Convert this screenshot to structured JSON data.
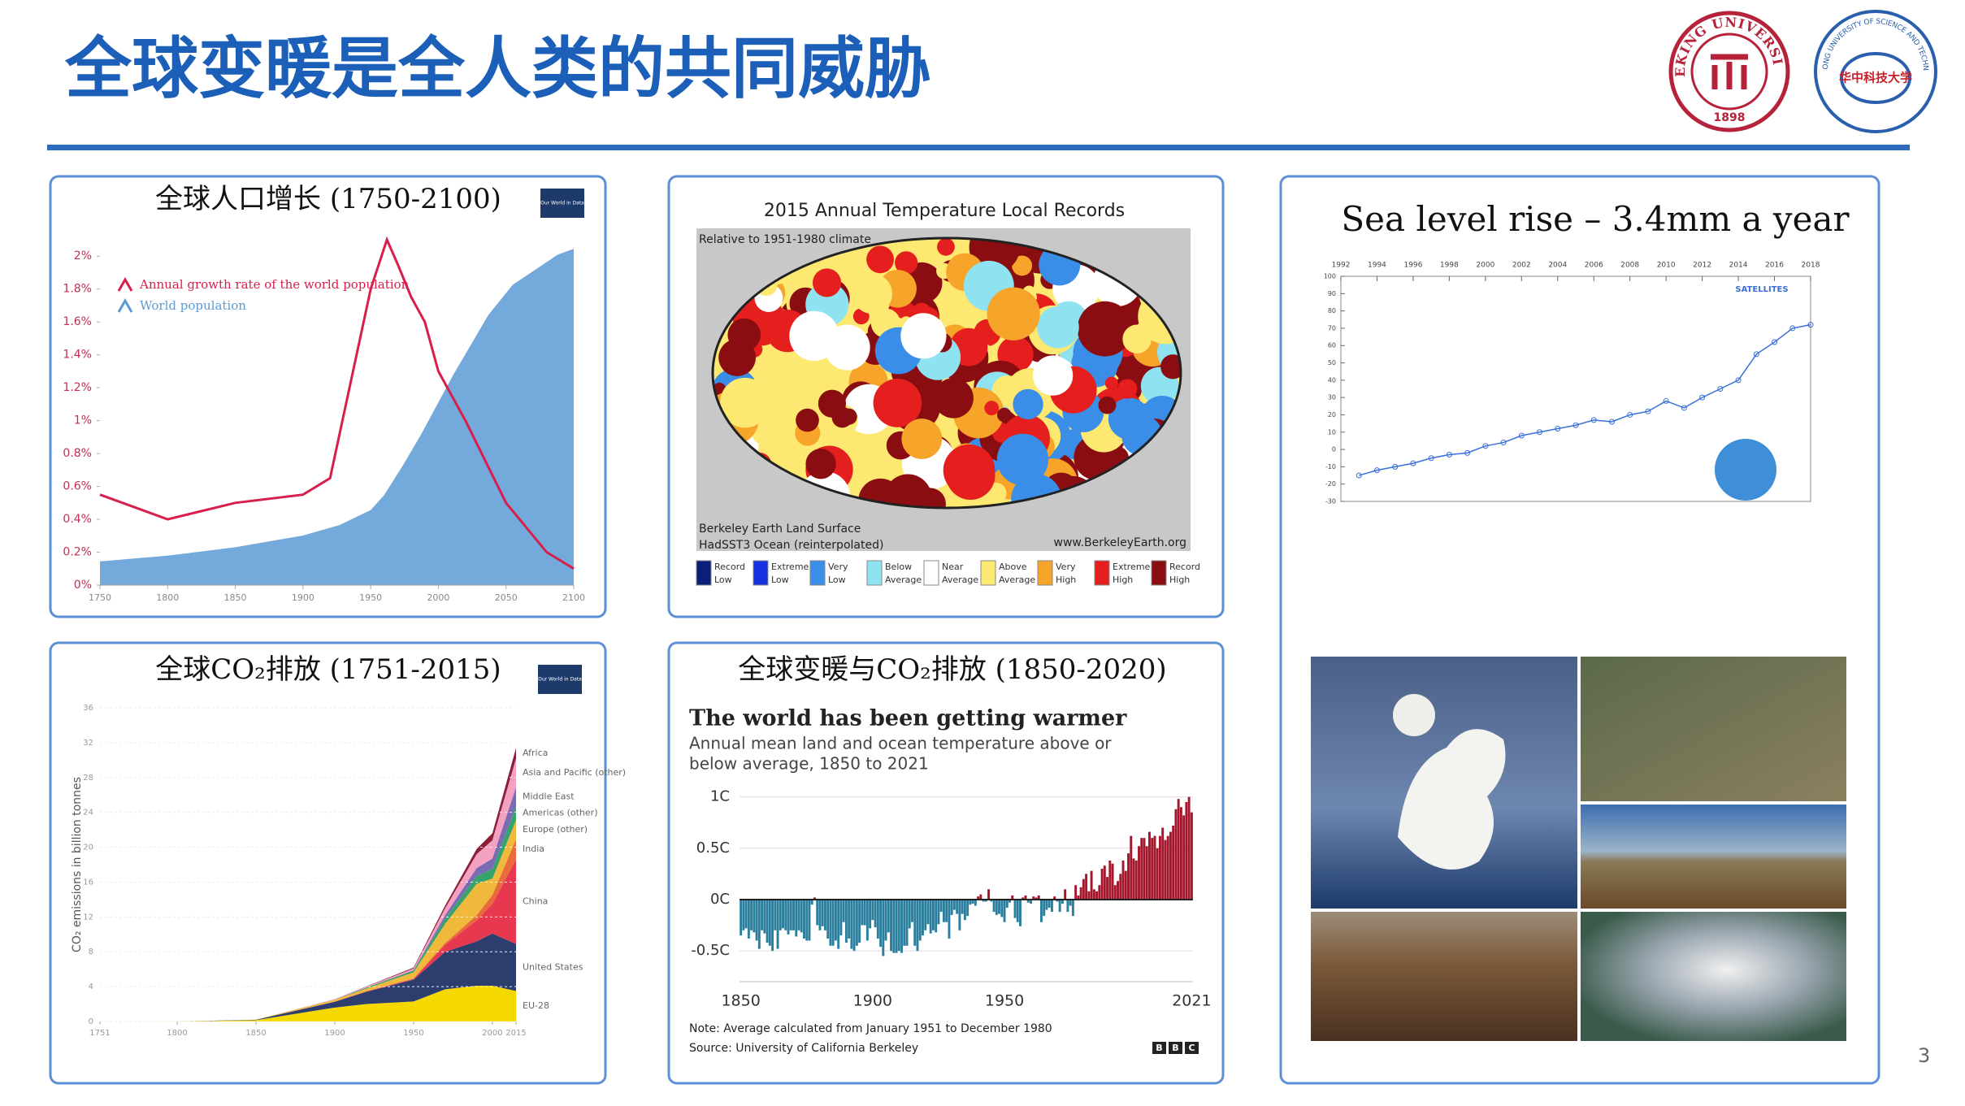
{
  "slide": {
    "title": "全球变暖是全人类的共同威胁",
    "page_number": "3",
    "logos": [
      {
        "text": "PEKING UNIVERSITY",
        "year": "1898"
      },
      {
        "text": "HUAZHONG UNIVERSITY OF SCIENCE AND TECHNOLOGY",
        "name": "华中科技大学"
      }
    ],
    "map_panel": {
      "title": "2015 Annual Temperature Local Records",
      "subtitle": "Relative to 1951-1980 climate",
      "source_lines": [
        "Berkeley Earth Land Surface",
        "HadSST3 Ocean (reinterpolated)"
      ],
      "website": "www.BerkeleyEarth.org",
      "legend": [
        {
          "label": [
            "Record",
            "Low"
          ],
          "color": "#0c1f78"
        },
        {
          "label": [
            "Extreme",
            "Low"
          ],
          "color": "#1432e0"
        },
        {
          "label": [
            "Very",
            "Low"
          ],
          "color": "#3a8ee8"
        },
        {
          "label": [
            "Below",
            "Average"
          ],
          "color": "#8fe3f0"
        },
        {
          "label": [
            "Near",
            "Average"
          ],
          "color": "#ffffff"
        },
        {
          "label": [
            "Above",
            "Average"
          ],
          "color": "#fde872"
        },
        {
          "label": [
            "Very",
            "High"
          ],
          "color": "#f6a42a"
        },
        {
          "label": [
            "Extreme",
            "High"
          ],
          "color": "#e51e1e"
        },
        {
          "label": [
            "Record",
            "High"
          ],
          "color": "#8a0d12"
        }
      ]
    }
  },
  "chart_data": [
    {
      "type": "line",
      "title": "全球人口增长 (1750-2100)",
      "badge": "Our World in Data",
      "xlim": [
        1750,
        2100
      ],
      "xticks": [
        1750,
        1800,
        1850,
        1900,
        1950,
        2000,
        2050,
        2100
      ],
      "ylim": [
        0,
        2.1
      ],
      "yticks": [
        {
          "value": 0,
          "label": "0%"
        },
        {
          "value": 0.2,
          "label": "0.2%"
        },
        {
          "value": 0.4,
          "label": "0.4%"
        },
        {
          "value": 0.6,
          "label": "0.6%"
        },
        {
          "value": 0.8,
          "label": "0.8%"
        },
        {
          "value": 1,
          "label": "1%"
        },
        {
          "value": 1.2,
          "label": "1.2%"
        },
        {
          "value": 1.4,
          "label": "1.4%"
        },
        {
          "value": 1.6,
          "label": "1.6%"
        },
        {
          "value": 1.8,
          "label": "1.8%"
        },
        {
          "value": 2,
          "label": "2%"
        }
      ],
      "y2lim": [
        0,
        11.5
      ],
      "series": [
        {
          "name": "Annual growth rate of the world population",
          "color": "#d81e4a",
          "x": [
            1750,
            1800,
            1850,
            1900,
            1920,
            1950,
            1962,
            1970,
            1980,
            1990,
            2000,
            2020,
            2050,
            2080,
            2100
          ],
          "values": [
            0.55,
            0.4,
            0.5,
            0.55,
            0.65,
            1.8,
            2.1,
            1.95,
            1.75,
            1.6,
            1.3,
            1.0,
            0.5,
            0.2,
            0.1
          ]
        },
        {
          "name": "World population",
          "color": "#5b9bd5",
          "axis": "y2",
          "x": [
            1750,
            1800,
            1850,
            1900,
            1927,
            1950,
            1960,
            1974,
            1987,
            1999,
            2011,
            2024,
            2037,
            2055,
            2088,
            2100
          ],
          "values": [
            0.79,
            0.98,
            1.26,
            1.65,
            2,
            2.5,
            3,
            4,
            5,
            6,
            7,
            8,
            9,
            10,
            11,
            11.2
          ]
        }
      ]
    },
    {
      "type": "stacked_area",
      "title": "全球CO₂排放 (1751-2015)",
      "badge": "Our World in Data",
      "y_label": "CO₂ emissions in billion tonnes",
      "x": [
        1751,
        1800,
        1850,
        1900,
        1920,
        1950,
        1970,
        1990,
        2000,
        2015
      ],
      "xlim": [
        1751,
        2015
      ],
      "xticks": [
        1751,
        1800,
        1850,
        1900,
        1950,
        2000,
        2015
      ],
      "ylim": [
        0,
        36
      ],
      "yticks": [
        0,
        4,
        8,
        12,
        16,
        20,
        24,
        28,
        32,
        36
      ],
      "series": [
        {
          "name": "EU-28",
          "color": "#f5d800",
          "values": [
            0,
            0.01,
            0.15,
            1.6,
            2.0,
            2.3,
            3.7,
            4.1,
            4.1,
            3.5
          ]
        },
        {
          "name": "United States",
          "color": "#2d3e6e",
          "values": [
            0,
            0,
            0.05,
            0.66,
            1.4,
            2.5,
            4.3,
            5.1,
            6.0,
            5.4
          ]
        },
        {
          "name": "China",
          "color": "#e8384f",
          "values": [
            0,
            0,
            0,
            0.01,
            0.05,
            0.08,
            0.8,
            2.4,
            3.4,
            9.7
          ]
        },
        {
          "name": "India",
          "color": "#e96a3b",
          "values": [
            0,
            0,
            0,
            0.01,
            0.03,
            0.06,
            0.2,
            0.6,
            1.0,
            2.3
          ]
        },
        {
          "name": "Europe (other)",
          "color": "#f0b93b",
          "values": [
            0,
            0,
            0.01,
            0.2,
            0.3,
            0.7,
            2.2,
            3.6,
            1.9,
            2.2
          ]
        },
        {
          "name": "Americas (other)",
          "color": "#37a36b",
          "values": [
            0,
            0,
            0,
            0.02,
            0.1,
            0.2,
            0.6,
            0.9,
            1.1,
            1.6
          ]
        },
        {
          "name": "Middle East",
          "color": "#7a6bb5",
          "values": [
            0,
            0,
            0,
            0,
            0.01,
            0.05,
            0.4,
            0.9,
            1.2,
            2.2
          ]
        },
        {
          "name": "Asia and Pacific (other)",
          "color": "#f4a0c0",
          "values": [
            0,
            0,
            0,
            0.05,
            0.1,
            0.2,
            0.8,
            1.6,
            2.1,
            3.3
          ]
        },
        {
          "name": "Africa",
          "color": "#8a1f3a",
          "values": [
            0,
            0,
            0,
            0.01,
            0.03,
            0.1,
            0.3,
            0.6,
            0.8,
            1.2
          ]
        }
      ]
    },
    {
      "type": "bar",
      "title": "全球变暖与CO₂排放 (1850-2020)",
      "heading": "The world has been getting warmer",
      "subtitle_lines": [
        "Annual mean land and ocean temperature above or",
        "below average, 1850 to 2021"
      ],
      "note": "Note: Average calculated from January 1951 to December 1980",
      "source": "Source: University of California Berkeley",
      "logo": [
        "B",
        "B",
        "C"
      ],
      "xlim": [
        1850,
        2021
      ],
      "xticks": [
        1850,
        1900,
        1950,
        2021
      ],
      "ylim": [
        -0.8,
        1.1
      ],
      "yticks": [
        {
          "value": 1,
          "label": "1C"
        },
        {
          "value": 0.5,
          "label": "0.5C"
        },
        {
          "value": 0,
          "label": "0C"
        },
        {
          "value": -0.5,
          "label": "-0.5C"
        }
      ],
      "grid": true,
      "positive_color": "#a3162b",
      "negative_color": "#2b7f9e",
      "x": [
        1850,
        1851,
        1852,
        1853,
        1854,
        1855,
        1856,
        1857,
        1858,
        1859,
        1860,
        1861,
        1862,
        1863,
        1864,
        1865,
        1866,
        1867,
        1868,
        1869,
        1870,
        1871,
        1872,
        1873,
        1874,
        1875,
        1876,
        1877,
        1878,
        1879,
        1880,
        1881,
        1882,
        1883,
        1884,
        1885,
        1886,
        1887,
        1888,
        1889,
        1890,
        1891,
        1892,
        1893,
        1894,
        1895,
        1896,
        1897,
        1898,
        1899,
        1900,
        1901,
        1902,
        1903,
        1904,
        1905,
        1906,
        1907,
        1908,
        1909,
        1910,
        1911,
        1912,
        1913,
        1914,
        1915,
        1916,
        1917,
        1918,
        1919,
        1920,
        1921,
        1922,
        1923,
        1924,
        1925,
        1926,
        1927,
        1928,
        1929,
        1930,
        1931,
        1932,
        1933,
        1934,
        1935,
        1936,
        1937,
        1938,
        1939,
        1940,
        1941,
        1942,
        1943,
        1944,
        1945,
        1946,
        1947,
        1948,
        1949,
        1950,
        1951,
        1952,
        1953,
        1954,
        1955,
        1956,
        1957,
        1958,
        1959,
        1960,
        1961,
        1962,
        1963,
        1964,
        1965,
        1966,
        1967,
        1968,
        1969,
        1970,
        1971,
        1972,
        1973,
        1974,
        1975,
        1976,
        1977,
        1978,
        1979,
        1980,
        1981,
        1982,
        1983,
        1984,
        1985,
        1986,
        1987,
        1988,
        1989,
        1990,
        1991,
        1992,
        1993,
        1994,
        1995,
        1996,
        1997,
        1998,
        1999,
        2000,
        2001,
        2002,
        2003,
        2004,
        2005,
        2006,
        2007,
        2008,
        2009,
        2010,
        2011,
        2012,
        2013,
        2014,
        2015,
        2016,
        2017,
        2018,
        2019,
        2020,
        2021
      ],
      "values": [
        -0.35,
        -0.3,
        -0.28,
        -0.38,
        -0.3,
        -0.32,
        -0.4,
        -0.48,
        -0.3,
        -0.33,
        -0.42,
        -0.45,
        -0.5,
        -0.3,
        -0.48,
        -0.3,
        -0.28,
        -0.3,
        -0.34,
        -0.3,
        -0.3,
        -0.36,
        -0.3,
        -0.32,
        -0.38,
        -0.4,
        -0.4,
        -0.05,
        0.02,
        -0.25,
        -0.3,
        -0.26,
        -0.3,
        -0.38,
        -0.45,
        -0.45,
        -0.4,
        -0.48,
        -0.35,
        -0.22,
        -0.42,
        -0.38,
        -0.48,
        -0.5,
        -0.45,
        -0.42,
        -0.25,
        -0.25,
        -0.4,
        -0.28,
        -0.2,
        -0.27,
        -0.38,
        -0.46,
        -0.55,
        -0.4,
        -0.32,
        -0.5,
        -0.52,
        -0.52,
        -0.5,
        -0.52,
        -0.45,
        -0.45,
        -0.28,
        -0.22,
        -0.45,
        -0.5,
        -0.4,
        -0.35,
        -0.3,
        -0.24,
        -0.33,
        -0.3,
        -0.32,
        -0.24,
        -0.12,
        -0.22,
        -0.22,
        -0.38,
        -0.15,
        -0.1,
        -0.14,
        -0.3,
        -0.14,
        -0.2,
        -0.16,
        -0.05,
        -0.04,
        -0.06,
        0.03,
        0.05,
        -0.02,
        -0.02,
        0.1,
        -0.02,
        -0.12,
        -0.15,
        -0.14,
        -0.17,
        -0.22,
        -0.08,
        -0.03,
        0.04,
        -0.18,
        -0.22,
        -0.26,
        0.02,
        0.04,
        -0.03,
        -0.04,
        0.03,
        0.02,
        0.04,
        -0.22,
        -0.16,
        -0.1,
        -0.08,
        -0.12,
        0.03,
        -0.02,
        -0.12,
        -0.04,
        0.1,
        -0.12,
        -0.06,
        -0.16,
        0.14,
        0.04,
        0.12,
        0.2,
        0.25,
        0.08,
        0.28,
        0.1,
        0.08,
        0.14,
        0.3,
        0.33,
        0.22,
        0.38,
        0.35,
        0.14,
        0.18,
        0.25,
        0.38,
        0.28,
        0.45,
        0.62,
        0.4,
        0.38,
        0.52,
        0.6,
        0.6,
        0.52,
        0.66,
        0.6,
        0.62,
        0.5,
        0.62,
        0.7,
        0.58,
        0.62,
        0.66,
        0.72,
        0.88,
        0.98,
        0.9,
        0.82,
        0.95,
        1.0,
        0.85
      ]
    },
    {
      "type": "scatter_line",
      "title": "Sea level rise – 3.4mm a year",
      "annotation": "SATELLITES",
      "color": "#3a6fd8",
      "xlim": [
        1992,
        2018
      ],
      "xticks": [
        1992,
        1994,
        1996,
        1998,
        2000,
        2002,
        2004,
        2006,
        2008,
        2010,
        2012,
        2014,
        2016,
        2018
      ],
      "ylim": [
        -30,
        100
      ],
      "yticks": [
        -30,
        -20,
        -10,
        0,
        10,
        20,
        30,
        40,
        50,
        60,
        70,
        80,
        90,
        100
      ],
      "x": [
        1993,
        1994,
        1995,
        1996,
        1997,
        1998,
        1999,
        2000,
        2001,
        2002,
        2003,
        2004,
        2005,
        2006,
        2007,
        2008,
        2009,
        2010,
        2011,
        2012,
        2013,
        2014,
        2015,
        2016,
        2017,
        2018
      ],
      "values": [
        -15,
        -12,
        -10,
        -8,
        -5,
        -3,
        -2,
        2,
        4,
        8,
        10,
        12,
        14,
        17,
        16,
        20,
        22,
        28,
        24,
        30,
        35,
        40,
        55,
        62,
        70,
        72
      ]
    }
  ]
}
